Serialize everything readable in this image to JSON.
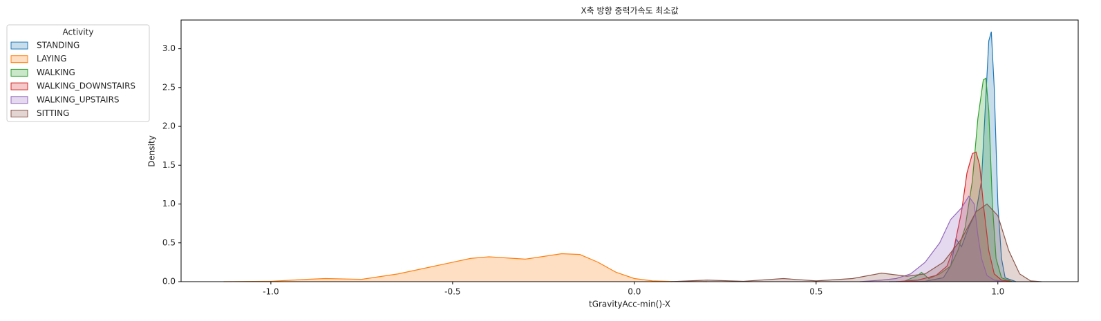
{
  "chart_data": {
    "type": "kde",
    "title": "X축 방향 중력가속도 최소값",
    "x_label": "tGravityAcc-min()-X",
    "y_label": "Density",
    "legend_title": "Activity",
    "legend": "upper-left-outside",
    "xlim": [
      -1.247,
      1.221
    ],
    "ylim": [
      0,
      3.37
    ],
    "xticks": [
      {
        "value": -1.0,
        "label": "-1.0"
      },
      -0.5,
      {
        "value": 0.0,
        "label": "0.0"
      },
      0.5,
      {
        "value": 1.0,
        "label": "1.0"
      }
    ],
    "yticks": [
      {
        "value": 0.0,
        "label": "0.0"
      },
      0.5,
      {
        "value": 1.0,
        "label": "1.0"
      },
      1.5,
      {
        "value": 2.0,
        "label": "2.0"
      },
      2.5,
      {
        "value": 3.0,
        "label": "3.0"
      }
    ],
    "series": [
      {
        "name": "STANDING",
        "color": "#1f77b4",
        "x": [
          0.7,
          0.8,
          0.85,
          0.87,
          0.885,
          0.9,
          0.92,
          0.94,
          0.955,
          0.965,
          0.975,
          0.982,
          0.99,
          1.0,
          1.01,
          1.02,
          1.05
        ],
        "values": [
          0,
          0.005,
          0.05,
          0.2,
          0.55,
          0.45,
          0.7,
          0.9,
          1.3,
          2.2,
          3.1,
          3.22,
          2.5,
          1.0,
          0.3,
          0.05,
          0
        ]
      },
      {
        "name": "LAYING",
        "color": "#ff7f0e",
        "x": [
          -1.13,
          -1.0,
          -0.9,
          -0.85,
          -0.75,
          -0.65,
          -0.55,
          -0.45,
          -0.4,
          -0.3,
          -0.2,
          -0.15,
          -0.1,
          -0.05,
          0.0,
          0.05,
          0.1,
          0.2
        ],
        "values": [
          0,
          0.005,
          0.03,
          0.04,
          0.03,
          0.1,
          0.2,
          0.3,
          0.32,
          0.29,
          0.36,
          0.35,
          0.25,
          0.12,
          0.04,
          0.01,
          0.003,
          0
        ]
      },
      {
        "name": "WALKING",
        "color": "#2ca02c",
        "x": [
          0.74,
          0.78,
          0.79,
          0.81,
          0.84,
          0.87,
          0.89,
          0.91,
          0.93,
          0.945,
          0.96,
          0.967,
          0.975,
          0.985,
          0.995,
          1.01,
          1.04
        ],
        "values": [
          0,
          0.08,
          0.12,
          0.04,
          0.1,
          0.2,
          0.4,
          0.7,
          1.3,
          2.1,
          2.6,
          2.62,
          2.2,
          1.0,
          0.3,
          0.05,
          0
        ]
      },
      {
        "name": "WALKING_DOWNSTAIRS",
        "color": "#d62728",
        "x": [
          0.72,
          0.78,
          0.83,
          0.86,
          0.88,
          0.9,
          0.915,
          0.93,
          0.94,
          0.95,
          0.96,
          0.975,
          0.99,
          1.01,
          1.04
        ],
        "values": [
          0,
          0.02,
          0.08,
          0.2,
          0.45,
          0.9,
          1.4,
          1.65,
          1.67,
          1.5,
          1.0,
          0.4,
          0.1,
          0.02,
          0
        ]
      },
      {
        "name": "WALKING_UPSTAIRS",
        "color": "#9467bd",
        "x": [
          0.62,
          0.68,
          0.72,
          0.76,
          0.8,
          0.84,
          0.87,
          0.9,
          0.92,
          0.935,
          0.945,
          0.955,
          0.97,
          0.99,
          1.02
        ],
        "values": [
          0,
          0.02,
          0.04,
          0.1,
          0.25,
          0.5,
          0.8,
          0.95,
          1.1,
          1.0,
          0.6,
          0.3,
          0.08,
          0.02,
          0
        ]
      },
      {
        "name": "SITTING",
        "color": "#8c564b",
        "x": [
          0.1,
          0.2,
          0.3,
          0.41,
          0.5,
          0.6,
          0.68,
          0.75,
          0.8,
          0.85,
          0.9,
          0.94,
          0.97,
          1.0,
          1.03,
          1.06,
          1.09,
          1.12
        ],
        "values": [
          0,
          0.02,
          0.005,
          0.04,
          0.01,
          0.04,
          0.11,
          0.07,
          0.1,
          0.25,
          0.55,
          0.9,
          1.0,
          0.85,
          0.4,
          0.1,
          0.01,
          0
        ]
      }
    ]
  }
}
